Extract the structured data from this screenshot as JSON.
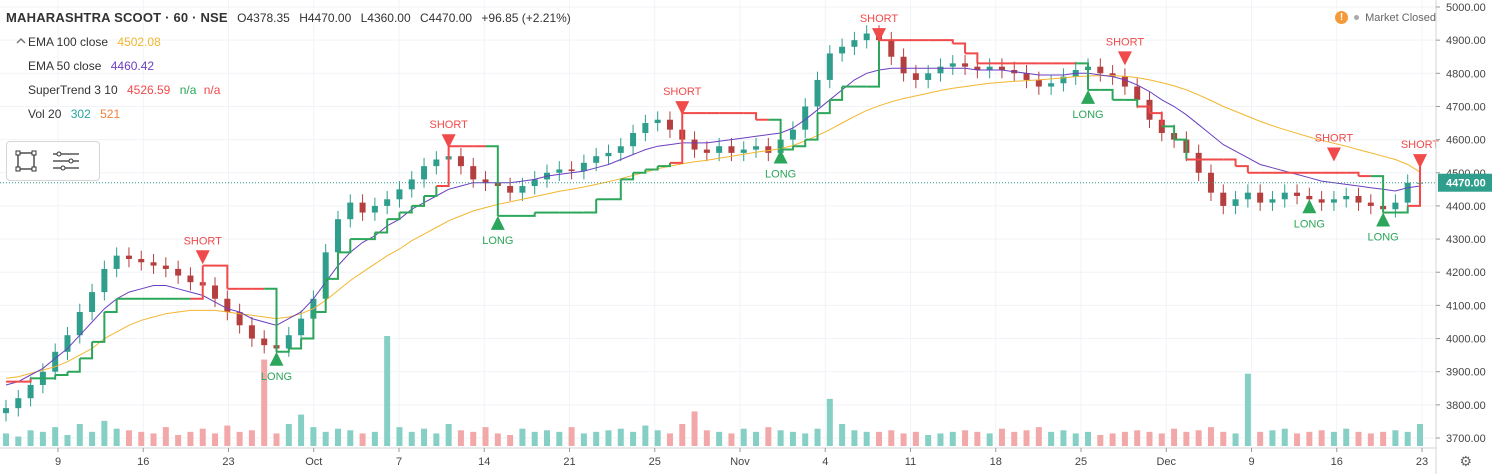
{
  "header": {
    "symbol": "MAHARASHTRA SCOOT · 60 · NSE",
    "open": "O4378.35",
    "high": "H4470.00",
    "low": "L4360.00",
    "close": "C4470.00",
    "change": "+96.85 (+2.21%)"
  },
  "indicators": [
    {
      "label": "EMA 100 close",
      "value": "4502.08",
      "color": "#f2b630"
    },
    {
      "label": "EMA 50 close",
      "value": "4460.42",
      "color": "#6a3fbf"
    },
    {
      "label": "SuperTrend 3 10",
      "value": "4526.59",
      "na1": "n/a",
      "na2": "n/a",
      "color": "#f04a4a"
    },
    {
      "label": "Vol 20",
      "value": "302",
      "value2": "521",
      "color": "#26a69a",
      "color2": "#ef7f3b"
    }
  ],
  "status": {
    "market": "Market Closed"
  },
  "colors": {
    "up": "#2f9e8c",
    "down": "#b53f3f",
    "long": "#2ca65a",
    "short": "#f04a4a"
  },
  "chart_data": {
    "type": "candlestick",
    "price_axis": {
      "min": 3700,
      "max": 5000,
      "ticks": [
        "5000.00",
        "4900.00",
        "4800.00",
        "4700.00",
        "4600.00",
        "4500.00",
        "4400.00",
        "4300.00",
        "4200.00",
        "4100.00",
        "4000.00",
        "3900.00",
        "3800.00",
        "3700.00"
      ],
      "last_price": "4470.00"
    },
    "x_ticks": [
      "9",
      "16",
      "23",
      "Oct",
      "7",
      "14",
      "21",
      "25",
      "Nov",
      "4",
      "11",
      "18",
      "25",
      "Dec",
      "9",
      "16",
      "23"
    ],
    "close_series": [
      3790,
      3820,
      3860,
      3900,
      3960,
      4010,
      4080,
      4140,
      4210,
      4250,
      4240,
      4230,
      4220,
      4210,
      4190,
      4170,
      4160,
      4120,
      4080,
      4040,
      4000,
      3980,
      3970,
      4010,
      4060,
      4120,
      4260,
      4360,
      4410,
      4380,
      4400,
      4420,
      4450,
      4480,
      4520,
      4540,
      4550,
      4520,
      4480,
      4470,
      4460,
      4440,
      4460,
      4480,
      4500,
      4510,
      4505,
      4530,
      4550,
      4560,
      4580,
      4620,
      4650,
      4660,
      4630,
      4600,
      4570,
      4560,
      4580,
      4560,
      4570,
      4580,
      4560,
      4600,
      4630,
      4700,
      4780,
      4860,
      4880,
      4900,
      4920,
      4900,
      4850,
      4800,
      4780,
      4800,
      4820,
      4830,
      4820,
      4810,
      4820,
      4810,
      4800,
      4780,
      4760,
      4770,
      4790,
      4810,
      4820,
      4800,
      4790,
      4760,
      4720,
      4660,
      4620,
      4600,
      4560,
      4500,
      4440,
      4400,
      4420,
      4440,
      4410,
      4420,
      4440,
      4430,
      4420,
      4410,
      4420,
      4430,
      4410,
      4400,
      4390,
      4410,
      4470,
      4470
    ],
    "supertrend": [
      3870,
      3870,
      3880,
      3880,
      3890,
      3900,
      3940,
      3990,
      4080,
      4120,
      4120,
      4120,
      4120,
      4120,
      4120,
      4120,
      4220,
      4220,
      4150,
      4150,
      4150,
      4150,
      3960,
      3970,
      4000,
      4080,
      4180,
      4260,
      4300,
      4300,
      4320,
      4360,
      4380,
      4400,
      4430,
      4460,
      4580,
      4580,
      4580,
      4580,
      4370,
      4370,
      4370,
      4380,
      4380,
      4380,
      4380,
      4380,
      4420,
      4420,
      4480,
      4500,
      4510,
      4520,
      4530,
      4680,
      4680,
      4680,
      4680,
      4680,
      4680,
      4660,
      4660,
      4570,
      4580,
      4600,
      4680,
      4720,
      4760,
      4760,
      4760,
      4900,
      4900,
      4900,
      4900,
      4900,
      4900,
      4890,
      4860,
      4830,
      4830,
      4830,
      4830,
      4830,
      4830,
      4830,
      4830,
      4830,
      4750,
      4750,
      4720,
      4720,
      4700,
      4680,
      4640,
      4600,
      4540,
      4540,
      4540,
      4540,
      4520,
      4500,
      4500,
      4500,
      4500,
      4500,
      4500,
      4500,
      4500,
      4500,
      4490,
      4490,
      4380,
      4380,
      4400,
      4520
    ],
    "ema50": [
      3860,
      3870,
      3890,
      3910,
      3940,
      3970,
      4010,
      4050,
      4090,
      4120,
      4140,
      4150,
      4160,
      4160,
      4150,
      4140,
      4130,
      4110,
      4090,
      4080,
      4060,
      4050,
      4040,
      4060,
      4080,
      4120,
      4170,
      4220,
      4260,
      4290,
      4310,
      4340,
      4360,
      4390,
      4410,
      4430,
      4450,
      4460,
      4470,
      4470,
      4470,
      4470,
      4475,
      4480,
      4490,
      4495,
      4500,
      4505,
      4515,
      4525,
      4540,
      4555,
      4570,
      4580,
      4585,
      4590,
      4590,
      4590,
      4595,
      4600,
      4605,
      4610,
      4615,
      4620,
      4635,
      4660,
      4690,
      4720,
      4750,
      4780,
      4800,
      4810,
      4815,
      4815,
      4815,
      4815,
      4815,
      4815,
      4815,
      4810,
      4810,
      4810,
      4805,
      4800,
      4795,
      4795,
      4795,
      4800,
      4800,
      4795,
      4790,
      4780,
      4765,
      4745,
      4720,
      4700,
      4675,
      4645,
      4615,
      4585,
      4565,
      4545,
      4525,
      4515,
      4505,
      4495,
      4485,
      4475,
      4470,
      4465,
      4460,
      4455,
      4450,
      4445,
      4455,
      4460
    ],
    "ema100": [
      3880,
      3885,
      3895,
      3905,
      3915,
      3930,
      3950,
      3970,
      4000,
      4020,
      4040,
      4055,
      4065,
      4075,
      4080,
      4085,
      4085,
      4085,
      4080,
      4075,
      4070,
      4065,
      4060,
      4065,
      4075,
      4090,
      4115,
      4145,
      4175,
      4200,
      4225,
      4250,
      4270,
      4295,
      4315,
      4335,
      4355,
      4370,
      4385,
      4395,
      4405,
      4412,
      4420,
      4428,
      4436,
      4444,
      4450,
      4457,
      4465,
      4473,
      4482,
      4492,
      4502,
      4512,
      4520,
      4527,
      4533,
      4538,
      4544,
      4550,
      4556,
      4562,
      4567,
      4573,
      4582,
      4596,
      4612,
      4630,
      4650,
      4670,
      4688,
      4702,
      4714,
      4724,
      4732,
      4740,
      4748,
      4755,
      4760,
      4765,
      4770,
      4773,
      4776,
      4778,
      4780,
      4783,
      4786,
      4790,
      4792,
      4793,
      4793,
      4791,
      4787,
      4780,
      4772,
      4762,
      4750,
      4735,
      4718,
      4700,
      4685,
      4670,
      4655,
      4642,
      4630,
      4619,
      4608,
      4598,
      4589,
      4580,
      4570,
      4560,
      4550,
      4540,
      4525,
      4502
    ],
    "signals": [
      {
        "type": "short",
        "label": "SHORT",
        "x_index": 16,
        "price": 4230
      },
      {
        "type": "long",
        "label": "LONG",
        "x_index": 22,
        "price": 3960
      },
      {
        "type": "short",
        "label": "SHORT",
        "x_index": 36,
        "price": 4580
      },
      {
        "type": "long",
        "label": "LONG",
        "x_index": 40,
        "price": 4370
      },
      {
        "type": "short",
        "label": "SHORT",
        "x_index": 55,
        "price": 4680
      },
      {
        "type": "long",
        "label": "LONG",
        "x_index": 63,
        "price": 4570
      },
      {
        "type": "short",
        "label": "SHORT",
        "x_index": 71,
        "price": 4900
      },
      {
        "type": "long",
        "label": "LONG",
        "x_index": 88,
        "price": 4750
      },
      {
        "type": "short",
        "label": "SHORT",
        "x_index": 91,
        "price": 4830
      },
      {
        "type": "long",
        "label": "LONG",
        "x_index": 106,
        "price": 4420
      },
      {
        "type": "short",
        "label": "SHORT",
        "x_index": 108,
        "price": 4540
      },
      {
        "type": "long",
        "label": "LONG",
        "x_index": 112,
        "price": 4380
      },
      {
        "type": "short",
        "label": "SHORT",
        "x_index": 115,
        "price": 4520
      }
    ],
    "volume_series": [
      8,
      6,
      10,
      9,
      12,
      7,
      14,
      9,
      16,
      11,
      10,
      9,
      8,
      12,
      7,
      9,
      11,
      8,
      13,
      9,
      10,
      55,
      8,
      14,
      20,
      12,
      9,
      11,
      10,
      8,
      9,
      70,
      12,
      9,
      11,
      8,
      14,
      10,
      9,
      12,
      8,
      7,
      11,
      9,
      10,
      9,
      12,
      8,
      9,
      10,
      11,
      9,
      13,
      10,
      8,
      14,
      22,
      10,
      9,
      8,
      11,
      9,
      12,
      10,
      9,
      8,
      11,
      30,
      14,
      10,
      9,
      9,
      10,
      8,
      9,
      7,
      8,
      9,
      10,
      9,
      8,
      11,
      9,
      10,
      12,
      9,
      10,
      8,
      9,
      7,
      8,
      9,
      10,
      9,
      8,
      11,
      9,
      10,
      12,
      9,
      8,
      46,
      9,
      10,
      11,
      8,
      9,
      10,
      9,
      11,
      9,
      8,
      9,
      10,
      9,
      14
    ]
  }
}
